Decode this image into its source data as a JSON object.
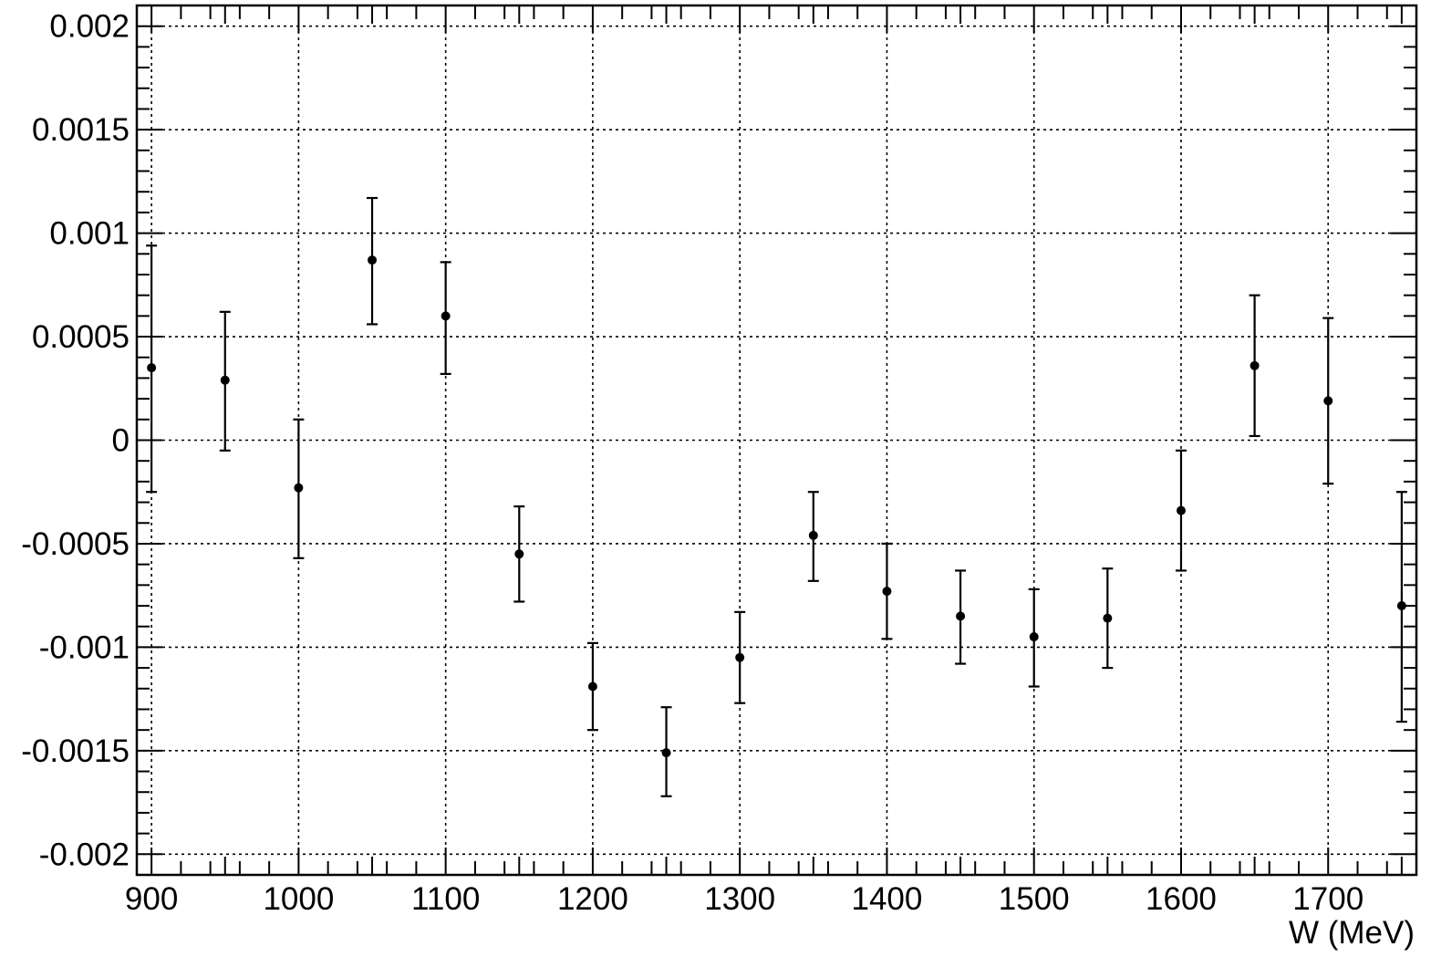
{
  "chart_data": {
    "type": "scatter",
    "title": "",
    "xlabel": "W (MeV)",
    "ylabel": "",
    "xlim": [
      890,
      1760
    ],
    "ylim": [
      -0.0021,
      0.0021
    ],
    "grid": true,
    "x_ticks": [
      900,
      1000,
      1100,
      1200,
      1300,
      1400,
      1500,
      1600,
      1700
    ],
    "x_tick_labels": [
      "900",
      "1000",
      "1100",
      "1200",
      "1300",
      "1400",
      "1500",
      "1600",
      "1700"
    ],
    "y_ticks": [
      -0.002,
      -0.0015,
      -0.001,
      -0.0005,
      0,
      0.0005,
      0.001,
      0.0015,
      0.002
    ],
    "y_tick_labels": [
      "-0.002",
      "-0.0015",
      "-0.001",
      "-0.0005",
      "0",
      "0.0005",
      "0.001",
      "0.0015",
      "0.002"
    ],
    "series": [
      {
        "x": [
          900,
          950,
          1000,
          1050,
          1100,
          1150,
          1200,
          1250,
          1300,
          1350,
          1400,
          1450,
          1500,
          1550,
          1600,
          1650,
          1700,
          1750
        ],
        "y": [
          0.00035,
          0.00029,
          -0.00023,
          0.00087,
          0.0006,
          -0.00055,
          -0.00119,
          -0.00151,
          -0.00105,
          -0.00046,
          -0.00073,
          -0.00085,
          -0.00095,
          -0.00086,
          -0.00034,
          0.00036,
          0.00019,
          -0.0008
        ],
        "y_err_low": [
          0.0006,
          0.00034,
          0.00034,
          0.00031,
          0.00028,
          0.00023,
          0.00021,
          0.00021,
          0.00022,
          0.00022,
          0.00023,
          0.00023,
          0.00024,
          0.00024,
          0.00029,
          0.00034,
          0.0004,
          0.00056
        ],
        "y_err_high": [
          0.00059,
          0.00033,
          0.00033,
          0.0003,
          0.00026,
          0.00023,
          0.00021,
          0.00022,
          0.00022,
          0.00021,
          0.00023,
          0.00022,
          0.00023,
          0.00024,
          0.00029,
          0.00034,
          0.0004,
          0.00055
        ]
      }
    ]
  },
  "colors": {
    "axis": "#000000",
    "grid": "#000000",
    "marker": "#000000",
    "background": "#ffffff"
  }
}
